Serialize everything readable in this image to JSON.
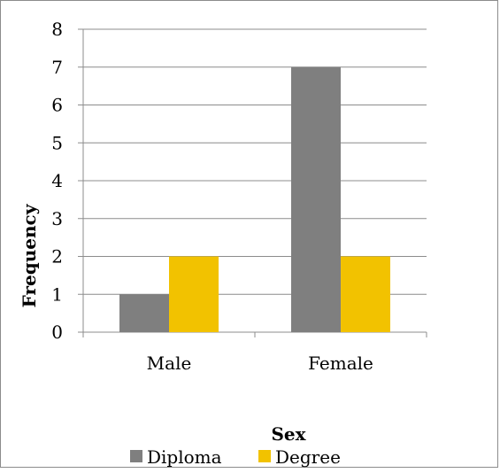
{
  "chart_data": {
    "type": "bar",
    "title": "",
    "xlabel": "Sex",
    "ylabel": "Frequency",
    "categories": [
      "Male",
      "Female"
    ],
    "series": [
      {
        "name": "Diploma",
        "values": [
          1,
          7
        ],
        "color": "#7f7f7f"
      },
      {
        "name": "Degree",
        "values": [
          2,
          2
        ],
        "color": "#f2c200"
      }
    ],
    "ylim": [
      0,
      8
    ],
    "yticks": [
      "0",
      "1",
      "2",
      "3",
      "4",
      "5",
      "6",
      "7",
      "8"
    ],
    "grid": true,
    "legend_position": "bottom"
  }
}
